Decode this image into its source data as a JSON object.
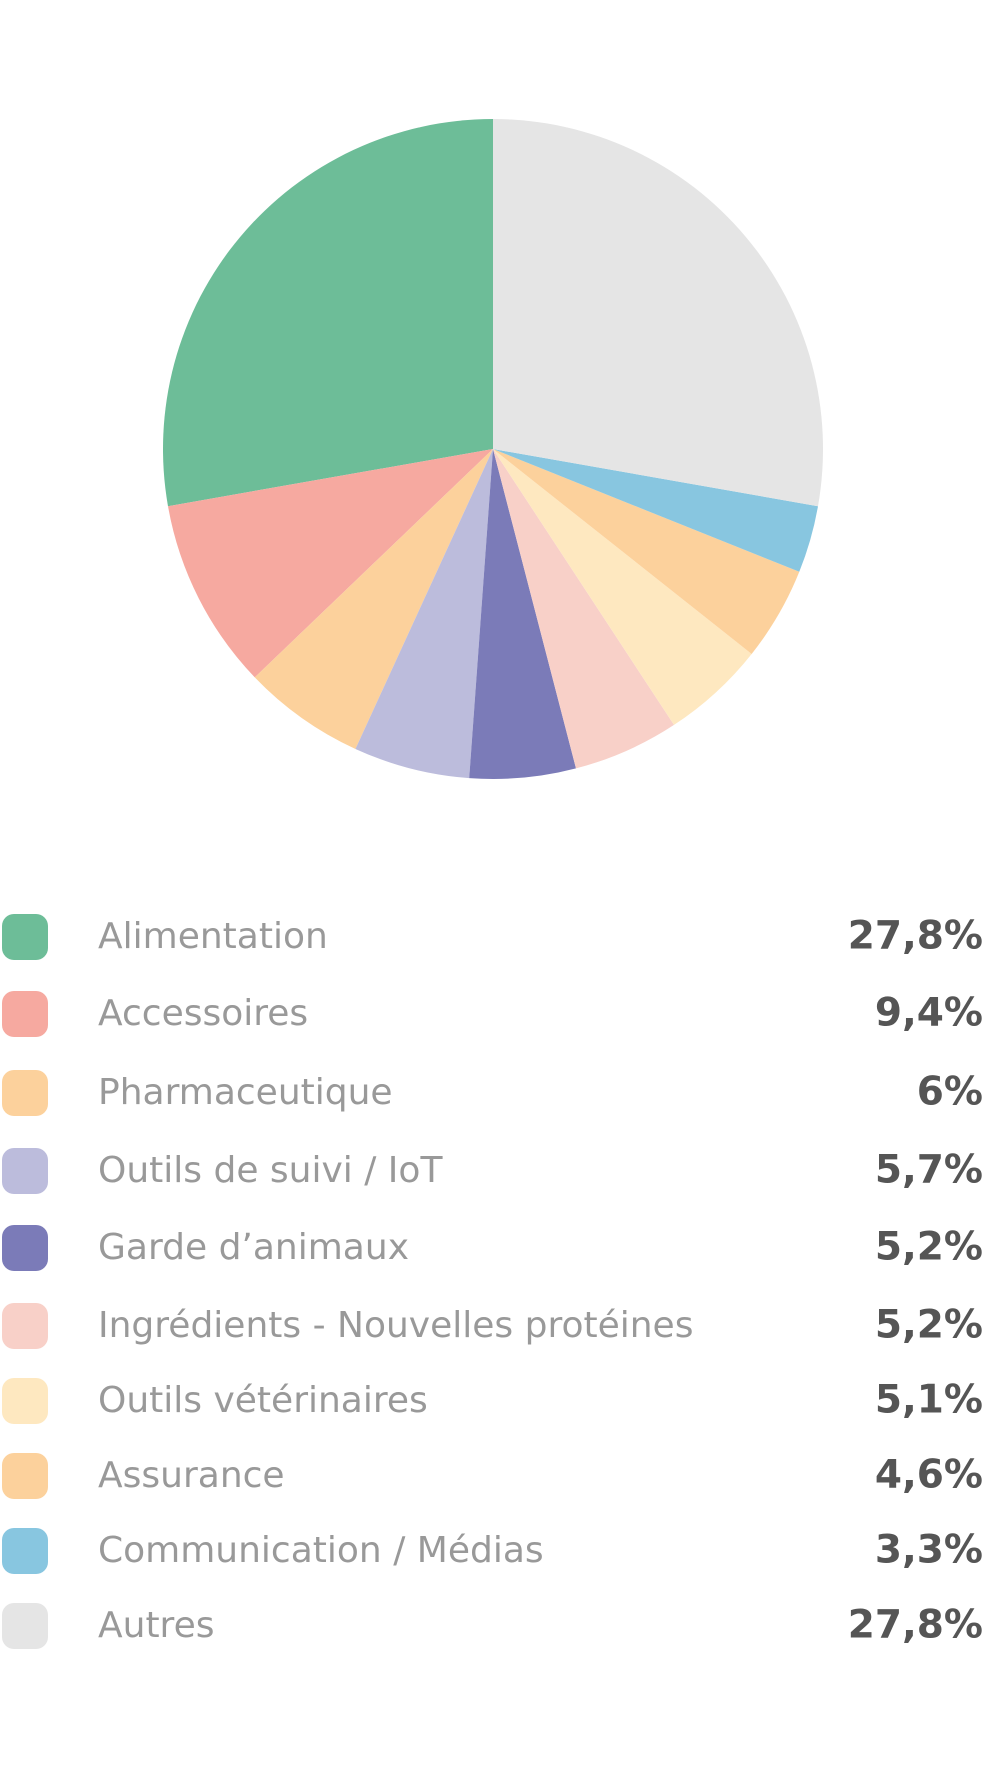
{
  "chart_data": {
    "type": "pie",
    "categories": [
      "Alimentation",
      "Accessoires",
      "Pharmaceutique",
      "Outils de suivi / IoT",
      "Garde d’animaux",
      "Ingrédients - Nouvelles protéines",
      "Outils vétérinaires",
      "Assurance",
      "Communication / Médias",
      "Autres"
    ],
    "values": [
      27.8,
      9.4,
      6,
      5.7,
      5.2,
      5.2,
      5.1,
      4.6,
      3.3,
      27.8
    ],
    "value_labels": [
      "27,8%",
      "9,4%",
      "6%",
      "5,7%",
      "5,2%",
      "5,2%",
      "5,1%",
      "4,6%",
      "3,3%",
      "27,8%"
    ],
    "colors": [
      "#6dbd98",
      "#f6a9a0",
      "#fcd19c",
      "#bcbcdc",
      "#7b7bb8",
      "#f8d0c8",
      "#fee8c0",
      "#fcd19c",
      "#88c6e0",
      "#e5e5e5"
    ]
  }
}
